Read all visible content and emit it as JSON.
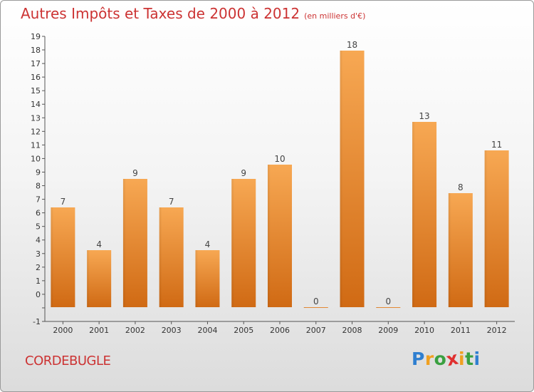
{
  "chart_data": {
    "type": "bar",
    "title": "Autres Impôts et Taxes de 2000 à 2012",
    "subtitle": "(en milliers d'€)",
    "categories": [
      "2000",
      "2001",
      "2002",
      "2003",
      "2004",
      "2005",
      "2006",
      "2007",
      "2008",
      "2009",
      "2010",
      "2011",
      "2012"
    ],
    "values": [
      7,
      4,
      9,
      7,
      4,
      9,
      10,
      0,
      18,
      0,
      13,
      8,
      11
    ],
    "ylim": [
      -1,
      19
    ],
    "yticks": [
      "-1",
      "",
      "0",
      "1",
      "2",
      "3",
      "4",
      "5",
      "6",
      "7",
      "8",
      "9",
      "10",
      "11",
      "12",
      "13",
      "14",
      "15",
      "16",
      "17",
      "18",
      "19"
    ],
    "xlabel": "",
    "ylabel": "",
    "grid": false,
    "bar_color": "#f4a04a"
  },
  "footer": {
    "place": "CORDEBUGLE"
  },
  "logo": {
    "letters": [
      "P",
      "r",
      "o",
      "x",
      "i",
      "t",
      "i"
    ],
    "colors": [
      "#2f7fd0",
      "#f0a020",
      "#3aa040",
      "#e03030",
      "#f0a020",
      "#3aa040",
      "#2f7fd0"
    ]
  }
}
